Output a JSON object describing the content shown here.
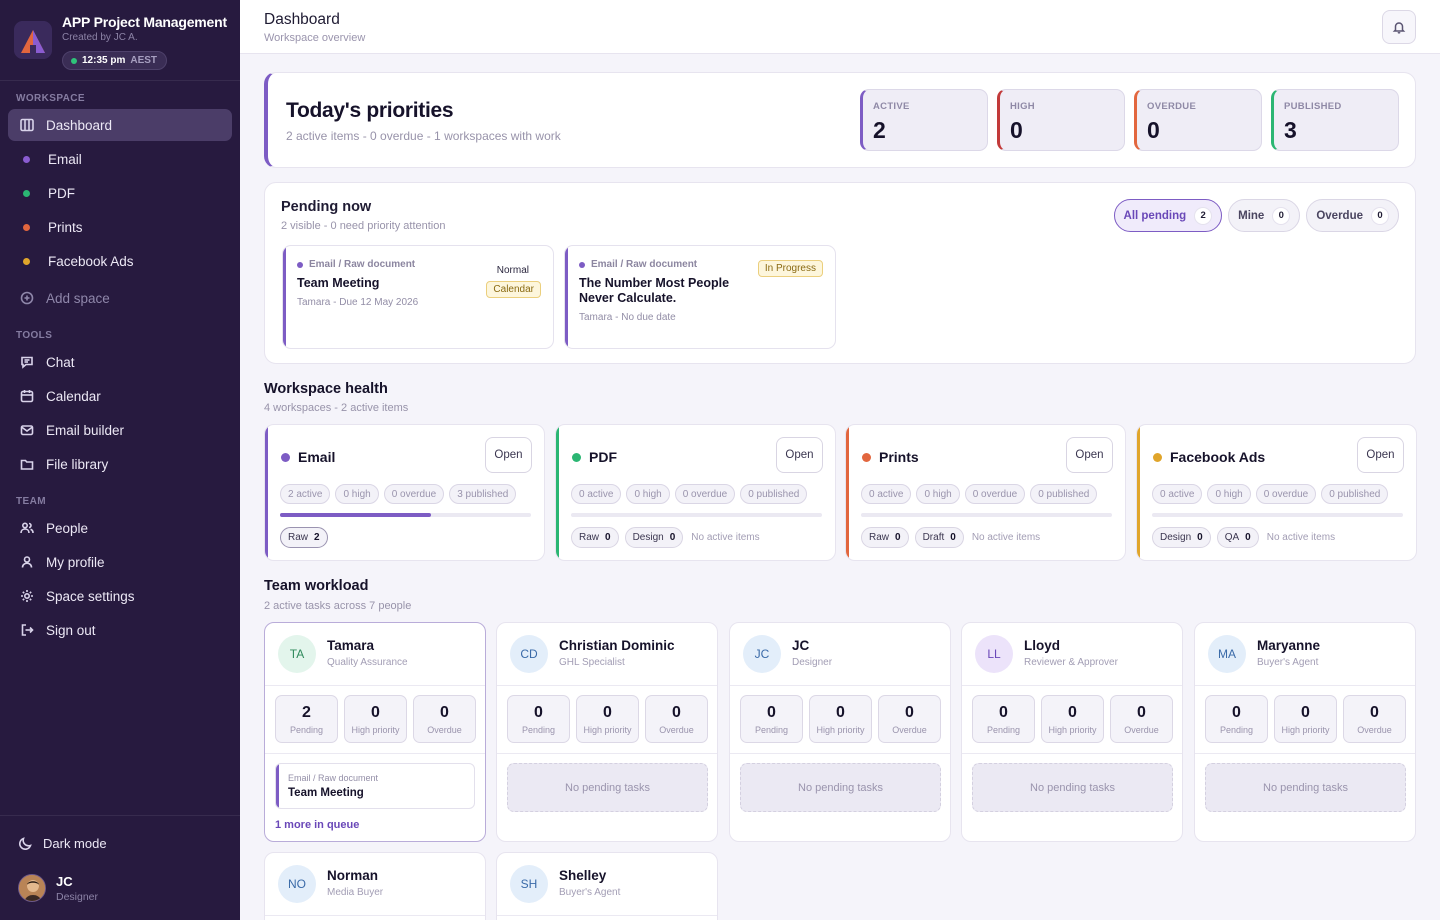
{
  "app": {
    "title": "APP Project Management",
    "subtitle": "Created by JC A.",
    "time": "12:35 pm",
    "timezone": "AEST"
  },
  "sidebar": {
    "workspace_label": "WORKSPACE",
    "workspace_items": [
      {
        "label": "Dashboard",
        "icon": "dashboard-icon"
      },
      {
        "label": "Email",
        "color": "#8a5cd1"
      },
      {
        "label": "PDF",
        "color": "#2bb673"
      },
      {
        "label": "Prints",
        "color": "#e2663e"
      },
      {
        "label": "Facebook Ads",
        "color": "#e0a52b"
      }
    ],
    "add_space": "Add space",
    "tools_label": "TOOLS",
    "tools_items": [
      {
        "label": "Chat",
        "icon": "chat-icon"
      },
      {
        "label": "Calendar",
        "icon": "calendar-icon"
      },
      {
        "label": "Email builder",
        "icon": "mail-icon"
      },
      {
        "label": "File library",
        "icon": "folder-icon"
      }
    ],
    "team_label": "TEAM",
    "team_items": [
      {
        "label": "People",
        "icon": "people-icon"
      },
      {
        "label": "My profile",
        "icon": "user-icon"
      },
      {
        "label": "Space settings",
        "icon": "gear-icon"
      },
      {
        "label": "Sign out",
        "icon": "sign-out-icon"
      }
    ],
    "dark_mode": "Dark mode",
    "user": {
      "name": "JC",
      "role": "Designer"
    }
  },
  "header": {
    "title": "Dashboard",
    "subtitle": "Workspace overview"
  },
  "priorities": {
    "title": "Today's priorities",
    "subtitle": "2 active items - 0 overdue - 1 workspaces with work",
    "stats": [
      {
        "label": "ACTIVE",
        "value": "2",
        "color": "#7d5cc4"
      },
      {
        "label": "HIGH",
        "value": "0",
        "color": "#c23a3a"
      },
      {
        "label": "OVERDUE",
        "value": "0",
        "color": "#e2663e"
      },
      {
        "label": "PUBLISHED",
        "value": "3",
        "color": "#2bb673"
      }
    ]
  },
  "pending": {
    "title": "Pending now",
    "subtitle": "2 visible - 0 need priority attention",
    "filters": [
      {
        "label": "All pending",
        "count": "2"
      },
      {
        "label": "Mine",
        "count": "0"
      },
      {
        "label": "Overdue",
        "count": "0"
      }
    ],
    "tasks": [
      {
        "category": "Email / Raw document",
        "title": "Team Meeting",
        "meta": "Tamara - Due 12 May 2026",
        "priority": "Normal",
        "tag": "Calendar"
      },
      {
        "category": "Email / Raw document",
        "title": "The Number Most People Never Calculate.",
        "meta": "Tamara - No due date",
        "tag": "In Progress"
      }
    ]
  },
  "workspace_health": {
    "title": "Workspace health",
    "subtitle": "4 workspaces - 2 active items",
    "open_label": "Open",
    "no_active": "No active items",
    "workspaces": [
      {
        "name": "Email",
        "color": "#7d5cc4",
        "chips": [
          "2 active",
          "0 high",
          "0 overdue",
          "3 published"
        ],
        "progress": 0.6,
        "stages": [
          {
            "label": "Raw",
            "count": "2"
          }
        ]
      },
      {
        "name": "PDF",
        "color": "#2bb673",
        "chips": [
          "0 active",
          "0 high",
          "0 overdue",
          "0 published"
        ],
        "progress": 0,
        "stages": [
          {
            "label": "Raw",
            "count": "0"
          },
          {
            "label": "Design",
            "count": "0"
          }
        ]
      },
      {
        "name": "Prints",
        "color": "#e2663e",
        "chips": [
          "0 active",
          "0 high",
          "0 overdue",
          "0 published"
        ],
        "progress": 0,
        "stages": [
          {
            "label": "Raw",
            "count": "0"
          },
          {
            "label": "Draft",
            "count": "0"
          }
        ]
      },
      {
        "name": "Facebook Ads",
        "color": "#e0a52b",
        "chips": [
          "0 active",
          "0 high",
          "0 overdue",
          "0 published"
        ],
        "progress": 0,
        "stages": [
          {
            "label": "Design",
            "count": "0"
          },
          {
            "label": "QA",
            "count": "0"
          }
        ]
      }
    ]
  },
  "team": {
    "title": "Team workload",
    "subtitle": "2 active tasks across 7 people",
    "stat_labels": [
      "Pending",
      "High priority",
      "Overdue"
    ],
    "empty": "No pending tasks",
    "members": [
      {
        "initials": "TA",
        "name": "Tamara",
        "role": "Quality Assurance",
        "bg": "#e3f5ec",
        "fg": "#2f8a5c",
        "pending": "2",
        "high": "0",
        "overdue": "0",
        "task_cat": "Email / Raw document",
        "task_title": "Team Meeting",
        "more": "1 more in queue"
      },
      {
        "initials": "CD",
        "name": "Christian Dominic",
        "role": "GHL Specialist",
        "bg": "#e3eefa",
        "fg": "#3a6aa8",
        "pending": "0",
        "high": "0",
        "overdue": "0"
      },
      {
        "initials": "JC",
        "name": "JC",
        "role": "Designer",
        "bg": "#e3eefa",
        "fg": "#3a6aa8",
        "pending": "0",
        "high": "0",
        "overdue": "0"
      },
      {
        "initials": "LL",
        "name": "Lloyd",
        "role": "Reviewer & Approver",
        "bg": "#ece3fa",
        "fg": "#6a48b8",
        "pending": "0",
        "high": "0",
        "overdue": "0"
      },
      {
        "initials": "MA",
        "name": "Maryanne",
        "role": "Buyer's Agent",
        "bg": "#e3eefa",
        "fg": "#3a6aa8",
        "pending": "0",
        "high": "0",
        "overdue": "0"
      },
      {
        "initials": "NO",
        "name": "Norman",
        "role": "Media Buyer",
        "bg": "#e3eefa",
        "fg": "#3a6aa8"
      },
      {
        "initials": "SH",
        "name": "Shelley",
        "role": "Buyer's Agent",
        "bg": "#e3eefa",
        "fg": "#3a6aa8"
      }
    ]
  }
}
